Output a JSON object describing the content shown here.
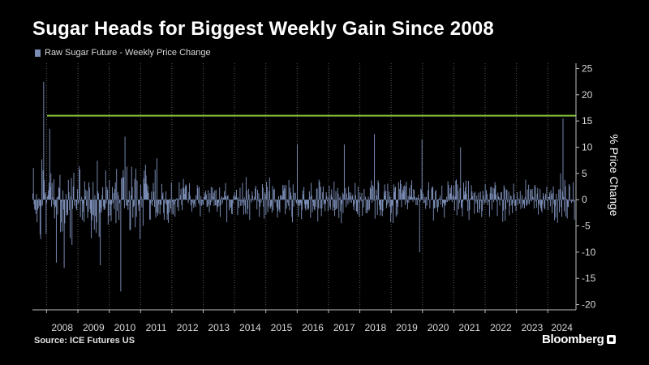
{
  "chart_data": {
    "type": "bar",
    "title": "Sugar Heads for Biggest Weekly Gain Since 2008",
    "ylabel": "% Price Change",
    "ylim": [
      -21,
      26
    ],
    "yticks": [
      25,
      20,
      15,
      10,
      5,
      0,
      -5,
      -10,
      -15,
      -20
    ],
    "x_categories": [
      "2008",
      "2009",
      "2010",
      "2011",
      "2012",
      "2013",
      "2014",
      "2015",
      "2016",
      "2017",
      "2018",
      "2019",
      "2020",
      "2021",
      "2022",
      "2023",
      "2024"
    ],
    "x_range": [
      2007.55,
      2024.9
    ],
    "legend_position": "top-left",
    "reference_line": 16,
    "series": [
      {
        "name": "Raw Sugar Future - Weekly Price Change",
        "keypoints": [
          {
            "x": 2007.9,
            "y": 22.5
          },
          {
            "x": 2008.08,
            "y": 13.5
          },
          {
            "x": 2008.3,
            "y": -12
          },
          {
            "x": 2008.55,
            "y": -13
          },
          {
            "x": 2009.7,
            "y": -12.5
          },
          {
            "x": 2010.35,
            "y": -17.5
          },
          {
            "x": 2010.5,
            "y": 12
          },
          {
            "x": 2016.0,
            "y": 10.5
          },
          {
            "x": 2017.5,
            "y": 10.5
          },
          {
            "x": 2018.45,
            "y": 12.5
          },
          {
            "x": 2019.9,
            "y": -10
          },
          {
            "x": 2019.97,
            "y": 11.5
          },
          {
            "x": 2021.2,
            "y": 10
          },
          {
            "x": 2024.4,
            "y": 5
          },
          {
            "x": 2024.48,
            "y": 15.5
          }
        ]
      }
    ]
  },
  "source": "Source: ICE Futures US",
  "brand": "Bloomberg",
  "colors": {
    "bars": "#7b8db5",
    "reference_line": "#86c43a",
    "axis": "#bcbcbc",
    "grid": "#5a5a5a",
    "background": "#000000"
  }
}
